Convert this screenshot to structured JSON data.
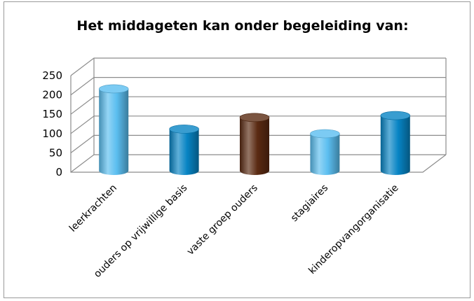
{
  "chart_data": {
    "type": "bar",
    "style": "3d-cylinder",
    "title": "Het middageten kan onder begeleiding van:",
    "xlabel": "",
    "ylabel": "",
    "categories": [
      "leerkrachten",
      "ouders op vrijwillige basis",
      "vaste groep ouders",
      "stagiaires",
      "kinderopvangorganisatie"
    ],
    "values": [
      212,
      108,
      138,
      96,
      143
    ],
    "ylim": [
      0,
      250
    ],
    "yticks": [
      0,
      50,
      100,
      150,
      200,
      250
    ],
    "grid": true,
    "legend": "none",
    "bar_colors": [
      "#5bbef0",
      "#0784c4",
      "#5a2a12",
      "#5bbef0",
      "#0784c4"
    ]
  }
}
